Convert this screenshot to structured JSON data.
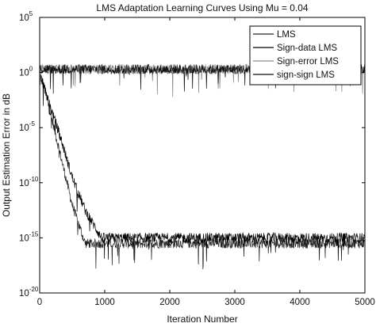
{
  "chart_data": {
    "type": "line",
    "title": "LMS Adaptation Learning Curves Using Mu = 0.04",
    "xlabel": "Iteration Number",
    "ylabel": "Output Estimation Error in dB",
    "xlim": [
      0,
      5000
    ],
    "ylim_log10": [
      -20,
      5
    ],
    "yscale": "log",
    "grid": false,
    "legend_position": "top-right",
    "x_ticks": [
      {
        "value": 0,
        "label": "0"
      },
      {
        "value": 1000,
        "label": "1000"
      },
      {
        "value": 2000,
        "label": "2000"
      },
      {
        "value": 3000,
        "label": "3000"
      },
      {
        "value": 4000,
        "label": "4000"
      },
      {
        "value": 5000,
        "label": "5000"
      }
    ],
    "y_ticks": [
      {
        "log10": 5,
        "base": "10",
        "exp": "5"
      },
      {
        "log10": 0,
        "base": "10",
        "exp": "0"
      },
      {
        "log10": -5,
        "base": "10",
        "exp": "-5"
      },
      {
        "log10": -10,
        "base": "10",
        "exp": "-10"
      },
      {
        "log10": -15,
        "base": "10",
        "exp": "-15"
      },
      {
        "log10": -20,
        "base": "10",
        "exp": "-20"
      }
    ],
    "series": [
      {
        "name": "LMS",
        "color": "#222222",
        "x": [
          0,
          100,
          300,
          500,
          700,
          5000
        ],
        "log10_y": [
          0,
          -2,
          -7,
          -12,
          -15.5,
          -15.5
        ]
      },
      {
        "name": "Sign-data LMS",
        "color": "#000000",
        "x": [
          0,
          100,
          300,
          500,
          700,
          950,
          5000
        ],
        "log10_y": [
          0,
          -2,
          -5.5,
          -9.5,
          -12.5,
          -15,
          -15
        ]
      },
      {
        "name": "Sign-error LMS",
        "color": "#8a8a8a",
        "x": [
          0,
          5000
        ],
        "log10_y": [
          0.3,
          0.3
        ]
      },
      {
        "name": "sign-sign LMS",
        "color": "#111111",
        "x": [
          0,
          5000
        ],
        "log10_y": [
          0.3,
          0.3
        ]
      }
    ]
  }
}
